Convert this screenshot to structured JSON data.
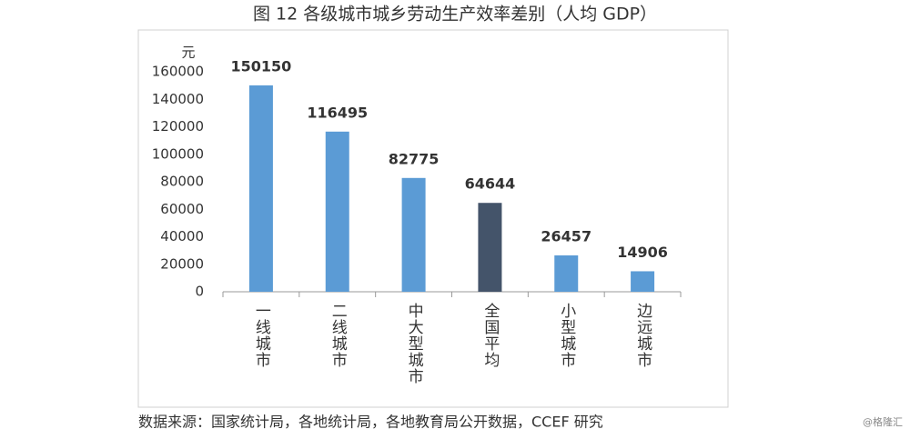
{
  "chart_data": {
    "type": "bar",
    "title": "图 12 各级城市城乡劳动生产效率差别（人均 GDP）",
    "y_unit": "元",
    "categories": [
      "一线城市",
      "二线城市",
      "中大型城市",
      "全国平均",
      "小型城市",
      "边远城市"
    ],
    "values": [
      150150,
      116495,
      82775,
      64644,
      26457,
      14906
    ],
    "colors": [
      "#5b9bd5",
      "#5b9bd5",
      "#5b9bd5",
      "#44546a",
      "#5b9bd5",
      "#5b9bd5"
    ],
    "ylim": [
      0,
      160000
    ],
    "yticks": [
      0,
      20000,
      40000,
      60000,
      80000,
      100000,
      120000,
      140000,
      160000
    ],
    "grid": false,
    "source": "数据来源：国家统计局，各地统计局，各地教育局公开数据，CCEF 研究",
    "watermark": "@格隆汇"
  }
}
